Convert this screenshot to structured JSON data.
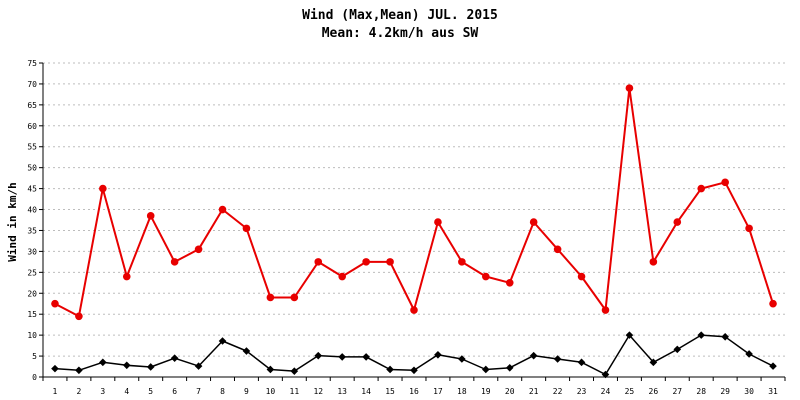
{
  "chart_data": {
    "type": "line",
    "title": "Wind (Max,Mean) JUL. 2015",
    "subtitle": "Mean: 4.2km/h aus SW",
    "ylabel": "Wind in km/h",
    "xlabel": "",
    "ylim": [
      0,
      75
    ],
    "yticks": [
      "0",
      "5",
      "10",
      "15",
      "20",
      "25",
      "30",
      "35",
      "40",
      "45",
      "50",
      "55",
      "60",
      "65",
      "70",
      "75"
    ],
    "categories": [
      "1",
      "2",
      "3",
      "4",
      "5",
      "6",
      "7",
      "8",
      "9",
      "10",
      "11",
      "12",
      "13",
      "14",
      "15",
      "16",
      "17",
      "18",
      "19",
      "20",
      "21",
      "22",
      "23",
      "24",
      "25",
      "26",
      "27",
      "28",
      "29",
      "30",
      "31"
    ],
    "grid": true,
    "series": [
      {
        "marker": "circle",
        "color": "#e80000",
        "values": [
          17.5,
          14.5,
          45,
          24,
          38.5,
          27.5,
          30.5,
          40,
          35.5,
          19,
          19,
          27.5,
          24,
          27.5,
          27.5,
          16,
          37,
          27.5,
          24,
          22.5,
          37,
          30.5,
          24,
          16,
          69,
          27.5,
          37,
          45,
          46.5,
          35.5,
          17.5
        ]
      },
      {
        "marker": "diamond",
        "color": "#000000",
        "values": [
          2,
          1.6,
          3.5,
          2.8,
          2.4,
          4.5,
          2.6,
          8.6,
          6.2,
          1.8,
          1.4,
          5.1,
          4.8,
          4.8,
          1.8,
          1.6,
          5.3,
          4.3,
          1.8,
          2.2,
          5.1,
          4.3,
          3.5,
          0.6,
          10,
          3.5,
          6.6,
          10,
          9.6,
          5.5,
          2.6
        ]
      }
    ]
  }
}
